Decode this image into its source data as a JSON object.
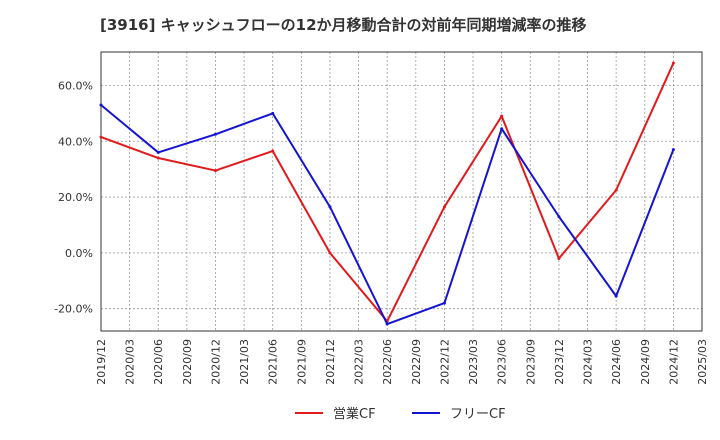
{
  "chart_data": {
    "type": "line",
    "title": "[3916]  キャッシュフローの12か月移動合計の対前年同期増減率の推移",
    "xlabel": "",
    "ylabel": "",
    "categories": [
      "2019/12",
      "2020/03",
      "2020/06",
      "2020/09",
      "2020/12",
      "2021/03",
      "2021/06",
      "2021/09",
      "2021/12",
      "2022/03",
      "2022/06",
      "2022/09",
      "2022/12",
      "2023/03",
      "2023/06",
      "2023/09",
      "2023/12",
      "2024/03",
      "2024/06",
      "2024/09",
      "2024/12",
      "2025/03"
    ],
    "yticks": [
      -20,
      0,
      20,
      40,
      60
    ],
    "ytick_labels": [
      "-20.0%",
      "0.0%",
      "20.0%",
      "40.0%",
      "60.0%"
    ],
    "ylim": [
      -28,
      72
    ],
    "grid": true,
    "legend_position": "bottom-center",
    "series": [
      {
        "name": "営業CF",
        "color": "#e31a1c",
        "values": [
          41.5,
          null,
          34,
          null,
          29.5,
          null,
          36.5,
          null,
          0,
          null,
          -24.5,
          null,
          16.5,
          null,
          49,
          null,
          -2,
          null,
          22.5,
          null,
          68,
          null
        ]
      },
      {
        "name": "フリーCF",
        "color": "#1414d2",
        "values": [
          53,
          null,
          36,
          null,
          42.5,
          null,
          50,
          null,
          16.5,
          null,
          -25.5,
          null,
          -18,
          null,
          44.5,
          null,
          13,
          null,
          -15.5,
          null,
          37,
          null
        ]
      }
    ]
  }
}
